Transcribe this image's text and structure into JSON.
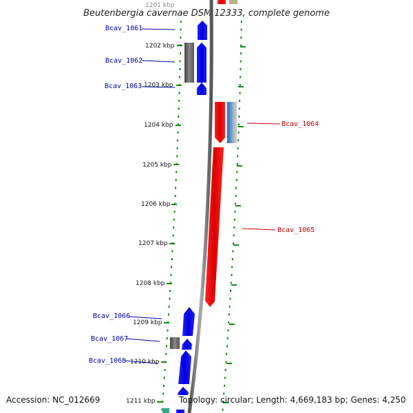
{
  "title": "Beutenbergia cavernae DSM 12333, complete genome",
  "footer": {
    "accession": "Accession: NC_012669",
    "topology": "Topology: circular; Length: 4,669,183 bp; Genes: 4,250"
  },
  "colors": {
    "forward_gene": "#0000ee",
    "reverse_gene": "#ee0000",
    "pseudo_gene": "#666666",
    "rna_gene": "#4477aa",
    "tick_green": "#118811",
    "label_blue": "#0000aa",
    "label_red": "#cc0000"
  },
  "scale_labels": [
    "1201 kbp",
    "1202 kbp",
    "1203 kbp",
    "1204 kbp",
    "1205 kbp",
    "1206 kbp",
    "1207 kbp",
    "1208 kbp",
    "1209 kbp",
    "1210 kbp",
    "1211 kbp"
  ],
  "gene_labels": [
    {
      "name": "Bcav_1061",
      "strand": "forward"
    },
    {
      "name": "Bcav_1062",
      "strand": "forward"
    },
    {
      "name": "Bcav_1063",
      "strand": "forward"
    },
    {
      "name": "Bcav_1064",
      "strand": "reverse"
    },
    {
      "name": "Bcav_1065",
      "strand": "reverse"
    },
    {
      "name": "Bcav_1066",
      "strand": "forward"
    },
    {
      "name": "Bcav_1067",
      "strand": "forward"
    },
    {
      "name": "Bcav_1068",
      "strand": "forward"
    }
  ]
}
